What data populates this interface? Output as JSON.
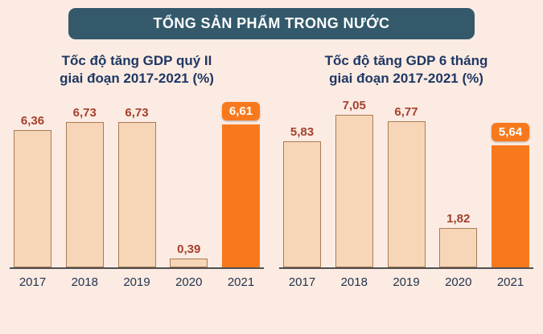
{
  "header": {
    "title": "TỔNG SẢN PHẨM TRONG NƯỚC"
  },
  "colors": {
    "background": "#fcebe2",
    "banner": "#33596b",
    "bar_fill": "#f7d6b8",
    "bar_border": "#a97a54",
    "highlight": "#f8791d",
    "value_label": "#a5402d",
    "title_text": "#1f3864"
  },
  "chart_data": [
    {
      "type": "bar",
      "title": "Tốc độ tăng GDP quý II giai đoạn 2017-2021 (%)",
      "title_lines": [
        "Tốc độ tăng GDP quý II",
        "giai đoạn 2017-2021 (%)"
      ],
      "categories": [
        "2017",
        "2018",
        "2019",
        "2020",
        "2021"
      ],
      "values": [
        6.36,
        6.73,
        6.73,
        0.39,
        6.61
      ],
      "labels": [
        "6,36",
        "6,73",
        "6,73",
        "0,39",
        "6,61"
      ],
      "highlight_index": 4,
      "ylim": [
        0,
        7.5
      ],
      "grid": false,
      "legend": "none"
    },
    {
      "type": "bar",
      "title": "Tốc độ tăng GDP 6 tháng giai đoạn 2017-2021 (%)",
      "title_lines": [
        "Tốc độ tăng GDP 6 tháng",
        "giai đoạn 2017-2021 (%)"
      ],
      "categories": [
        "2017",
        "2018",
        "2019",
        "2020",
        "2021"
      ],
      "values": [
        5.83,
        7.05,
        6.77,
        1.82,
        5.64
      ],
      "labels": [
        "5,83",
        "7,05",
        "6,77",
        "1,82",
        "5,64"
      ],
      "highlight_index": 4,
      "ylim": [
        0,
        7.5
      ],
      "grid": false,
      "legend": "none"
    }
  ]
}
